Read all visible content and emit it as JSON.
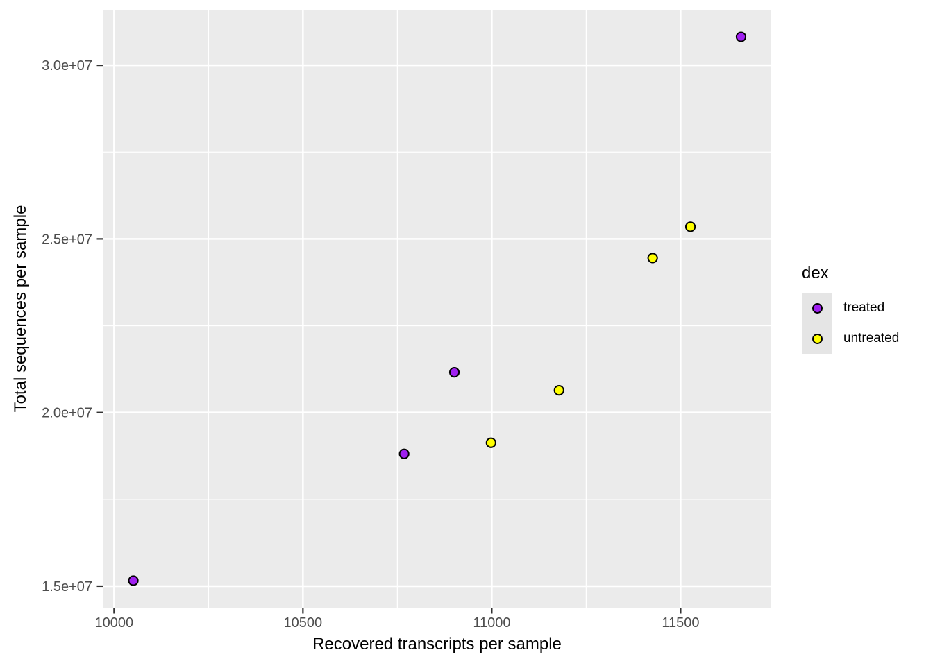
{
  "figure": {
    "x_axis_title": "Recovered transcripts per sample",
    "y_axis_title": "Total sequences per sample"
  },
  "legend": {
    "title": "dex",
    "entries": [
      {
        "label": "treated",
        "color": "#A020F0"
      },
      {
        "label": "untreated",
        "color": "#FFFF00"
      }
    ]
  },
  "chart_data": {
    "type": "scatter",
    "title": "",
    "xlabel": "Recovered transcripts per sample",
    "ylabel": "Total sequences per sample",
    "xlim": [
      9970,
      11740
    ],
    "ylim": [
      14380000,
      31600000
    ],
    "x_ticks": {
      "values": [
        10000,
        10500,
        11000,
        11500
      ],
      "labels": [
        "10000",
        "10500",
        "11000",
        "11500"
      ]
    },
    "y_ticks": {
      "values": [
        15000000,
        20000000,
        25000000,
        30000000
      ],
      "labels": [
        "1.5e+07",
        "2.0e+07",
        "2.5e+07",
        "3.0e+07"
      ]
    },
    "x_minor": [
      10250,
      10750,
      11250
    ],
    "y_minor": [
      17500000,
      22500000,
      27500000
    ],
    "grid": true,
    "legend_title": "dex",
    "legend_position": "right",
    "series": [
      {
        "name": "treated",
        "color": "#A020F0",
        "points": [
          [
            10051,
            15160000
          ],
          [
            10768,
            18810000
          ],
          [
            10901,
            21160000
          ],
          [
            11660,
            30820000
          ]
        ]
      },
      {
        "name": "untreated",
        "color": "#FFFF00",
        "points": [
          [
            10998,
            19130000
          ],
          [
            11178,
            20640000
          ],
          [
            11426,
            24450000
          ],
          [
            11526,
            25350000
          ]
        ]
      }
    ],
    "style": {
      "background": "#FFFFFF",
      "panel_bg": "#EBEBEB",
      "grid_color": "#FFFFFF",
      "tick_color": "#333333",
      "tick_label_color": "#4D4D4D",
      "point_stroke": "#000000"
    }
  }
}
